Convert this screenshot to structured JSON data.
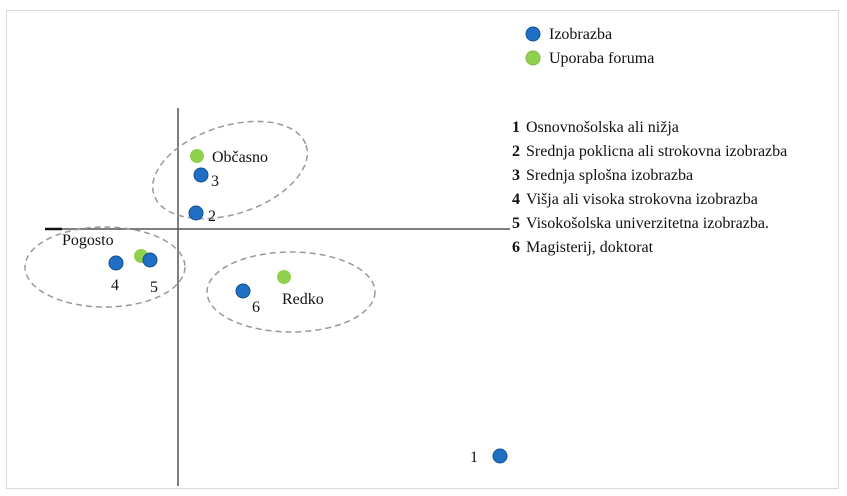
{
  "legend": [
    {
      "label": "Izobrazba",
      "color": "#1f6fc5"
    },
    {
      "label": "Uporaba foruma",
      "color": "#8fd14f"
    }
  ],
  "points": {
    "education": [
      "1",
      "2",
      "3",
      "4",
      "5",
      "6"
    ],
    "forum": [
      "Občasno",
      "Pogosto",
      "Redko"
    ]
  },
  "list": [
    {
      "number": "1",
      "text": "Osnovnošolska ali nižja"
    },
    {
      "number": "2",
      "text": "Srednja poklicna ali strokovna izobrazba"
    },
    {
      "number": "3",
      "text": "Srednja splošna izobrazba"
    },
    {
      "number": "4",
      "text": "Višja ali visoka strokovna izobrazba"
    },
    {
      "number": "5",
      "text": "Visokošolska univerzitetna izobrazba."
    },
    {
      "number": "6",
      "text": "Magisterij, doktorat"
    }
  ]
}
